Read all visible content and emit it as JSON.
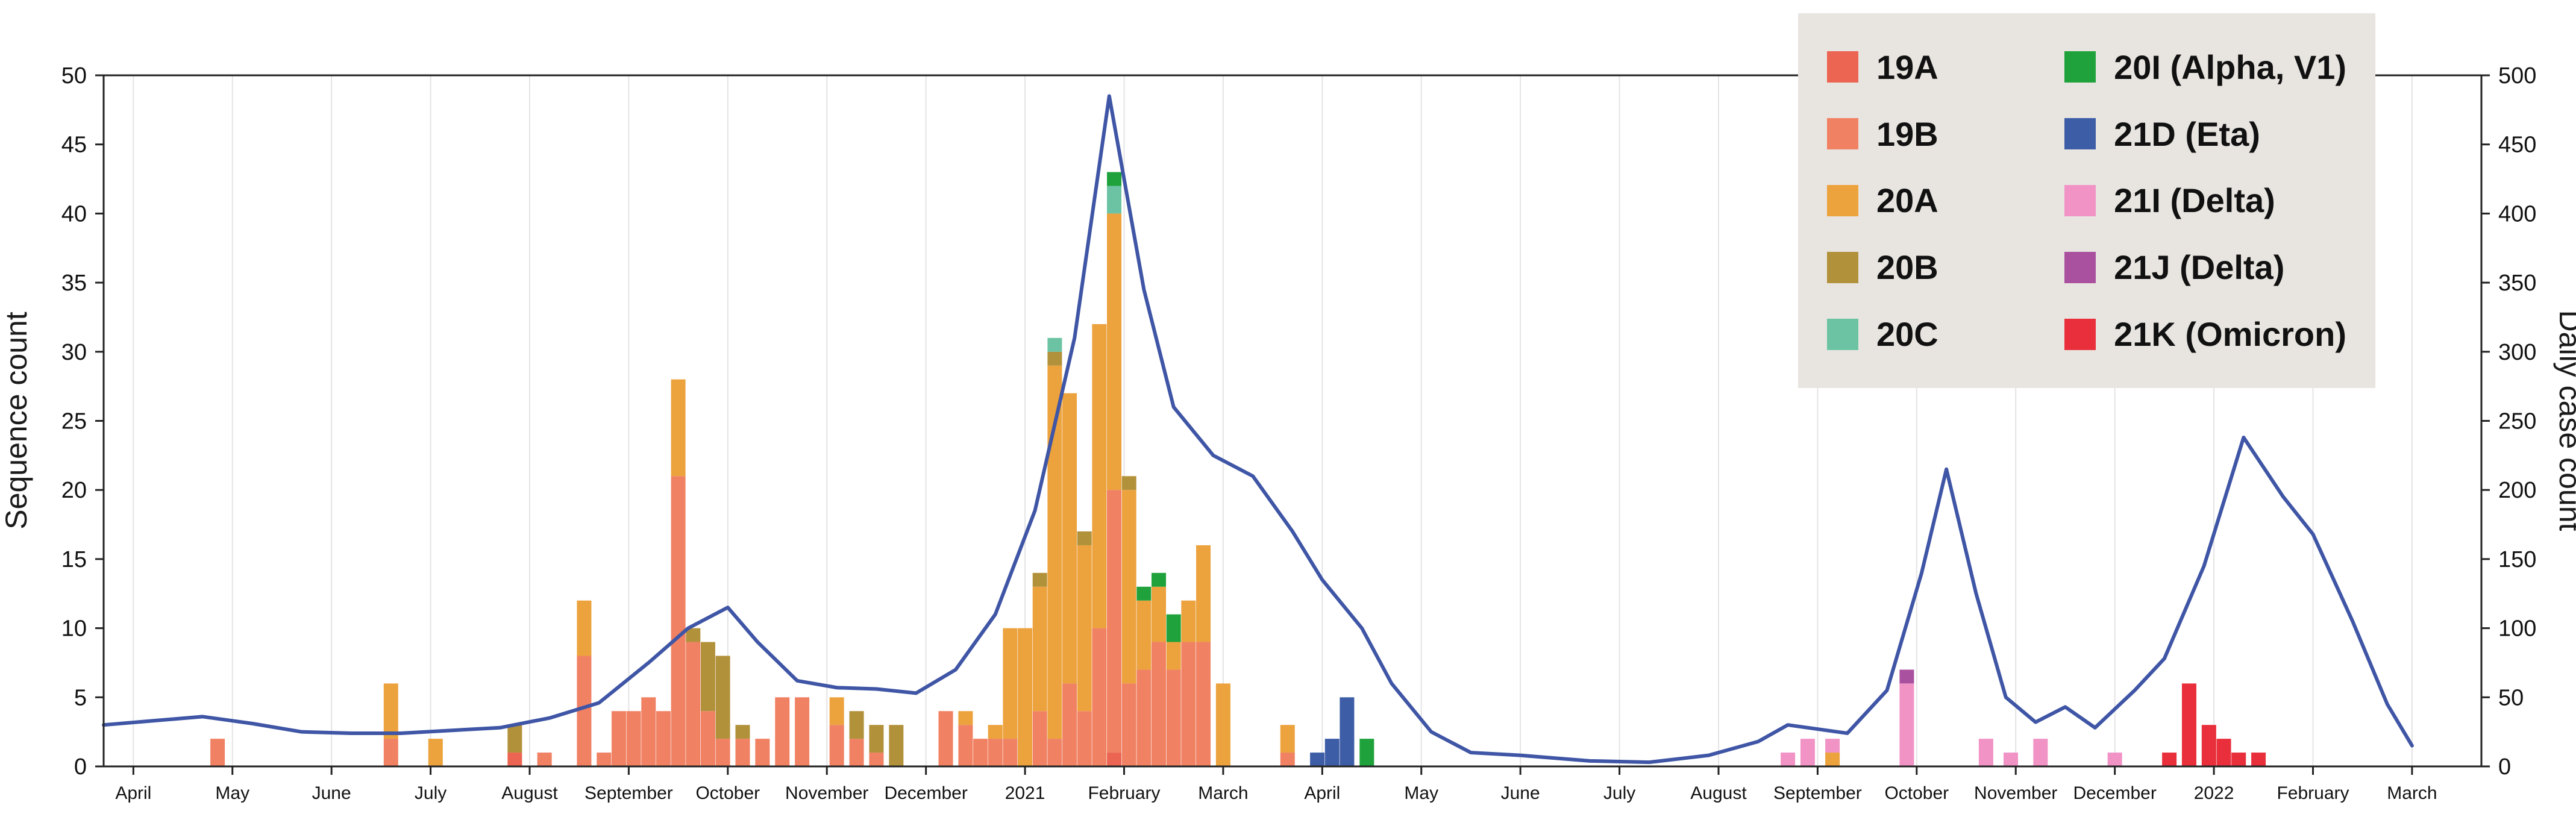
{
  "chart_data": {
    "type": "bar",
    "subtype": "stacked-bar-with-line-overlay",
    "title": "",
    "left_axis": {
      "label": "Sequence count",
      "min": 0,
      "max": 50,
      "tick_step": 5
    },
    "right_axis": {
      "label": "Daily case count",
      "min": 0,
      "max": 500,
      "tick_step": 50
    },
    "x_axis": {
      "months": [
        "April",
        "May",
        "June",
        "July",
        "August",
        "September",
        "October",
        "November",
        "December",
        "2021",
        "February",
        "March",
        "April",
        "May",
        "June",
        "July",
        "August",
        "September",
        "October",
        "November",
        "December",
        "2022",
        "February",
        "March"
      ]
    },
    "grid": "vertical-light",
    "legend_position": "top-right",
    "clades": [
      {
        "id": "19A",
        "label": "19A",
        "color": "#ec6452"
      },
      {
        "id": "19B",
        "label": "19B",
        "color": "#f08163"
      },
      {
        "id": "20A",
        "label": "20A",
        "color": "#eca23d"
      },
      {
        "id": "20B",
        "label": "20B",
        "color": "#b2913b"
      },
      {
        "id": "20C",
        "label": "20C",
        "color": "#6bc3a4"
      },
      {
        "id": "20I",
        "label": "20I (Alpha, V1)",
        "color": "#1fa23b"
      },
      {
        "id": "21D",
        "label": "21D (Eta)",
        "color": "#3d5da7"
      },
      {
        "id": "21I",
        "label": "21I (Delta)",
        "color": "#f293c6"
      },
      {
        "id": "21J",
        "label": "21J (Delta)",
        "color": "#a9509f"
      },
      {
        "id": "21K",
        "label": "21K (Omicron)",
        "color": "#e92f3b"
      }
    ],
    "bars_note": "x is in months from April 2020 (0) to March 2022 (23); segments are sequence counts per Nextstrain clade",
    "bars": [
      {
        "x": 1.15,
        "segments": {
          "19B": 2
        }
      },
      {
        "x": 2.9,
        "segments": {
          "19B": 2,
          "20A": 4
        }
      },
      {
        "x": 3.35,
        "segments": {
          "20A": 2
        }
      },
      {
        "x": 4.15,
        "segments": {
          "19A": 1,
          "20B": 2
        }
      },
      {
        "x": 4.45,
        "segments": {
          "19B": 1
        }
      },
      {
        "x": 4.85,
        "segments": {
          "19B": 8,
          "20A": 4
        }
      },
      {
        "x": 5.05,
        "segments": {
          "19B": 1
        }
      },
      {
        "x": 5.2,
        "segments": {
          "19B": 4
        }
      },
      {
        "x": 5.35,
        "segments": {
          "19B": 4
        }
      },
      {
        "x": 5.5,
        "segments": {
          "19B": 5
        }
      },
      {
        "x": 5.65,
        "segments": {
          "19B": 4
        }
      },
      {
        "x": 5.8,
        "segments": {
          "19B": 21,
          "20A": 7
        }
      },
      {
        "x": 5.95,
        "segments": {
          "19B": 9,
          "20B": 1
        }
      },
      {
        "x": 6.1,
        "segments": {
          "19B": 4,
          "20B": 5
        }
      },
      {
        "x": 6.25,
        "segments": {
          "19B": 2,
          "20B": 6
        }
      },
      {
        "x": 6.45,
        "segments": {
          "19B": 2,
          "20B": 1
        }
      },
      {
        "x": 6.65,
        "segments": {
          "19B": 2
        }
      },
      {
        "x": 6.85,
        "segments": {
          "19B": 5
        }
      },
      {
        "x": 7.05,
        "segments": {
          "19B": 5
        }
      },
      {
        "x": 7.4,
        "segments": {
          "19B": 3,
          "20A": 2
        }
      },
      {
        "x": 7.6,
        "segments": {
          "19B": 2,
          "20B": 2
        }
      },
      {
        "x": 7.8,
        "segments": {
          "19B": 1,
          "20B": 2
        }
      },
      {
        "x": 8.0,
        "segments": {
          "20B": 3
        }
      },
      {
        "x": 8.5,
        "segments": {
          "19B": 4
        }
      },
      {
        "x": 8.7,
        "segments": {
          "19B": 3,
          "20A": 1
        }
      },
      {
        "x": 8.85,
        "segments": {
          "19B": 2
        }
      },
      {
        "x": 9.0,
        "segments": {
          "19B": 2,
          "20A": 1
        }
      },
      {
        "x": 9.15,
        "segments": {
          "19B": 2,
          "20A": 8
        }
      },
      {
        "x": 9.3,
        "segments": {
          "20A": 10
        }
      },
      {
        "x": 9.45,
        "segments": {
          "19B": 4,
          "20A": 9,
          "20B": 1
        }
      },
      {
        "x": 9.6,
        "segments": {
          "19B": 2,
          "20A": 27,
          "20B": 1,
          "20C": 1
        }
      },
      {
        "x": 9.75,
        "segments": {
          "19B": 6,
          "20A": 21
        }
      },
      {
        "x": 9.9,
        "segments": {
          "19B": 4,
          "20A": 12,
          "20B": 1
        }
      },
      {
        "x": 10.05,
        "segments": {
          "19B": 10,
          "20A": 22
        }
      },
      {
        "x": 10.2,
        "segments": {
          "19A": 1,
          "19B": 19,
          "20A": 20,
          "20I": 1,
          "20C": 2
        }
      },
      {
        "x": 10.35,
        "segments": {
          "19B": 6,
          "20A": 14,
          "20B": 1
        }
      },
      {
        "x": 10.5,
        "segments": {
          "19B": 7,
          "20A": 5,
          "20I": 1
        }
      },
      {
        "x": 10.65,
        "segments": {
          "19B": 9,
          "20A": 4,
          "20I": 1
        }
      },
      {
        "x": 10.8,
        "segments": {
          "19B": 7,
          "20A": 2,
          "20I": 2
        }
      },
      {
        "x": 10.95,
        "segments": {
          "19B": 9,
          "20A": 3
        }
      },
      {
        "x": 11.1,
        "segments": {
          "19B": 9,
          "20A": 7
        }
      },
      {
        "x": 11.3,
        "segments": {
          "20A": 6
        }
      },
      {
        "x": 11.95,
        "segments": {
          "19B": 1,
          "20A": 2
        }
      },
      {
        "x": 12.25,
        "segments": {
          "21D": 1
        }
      },
      {
        "x": 12.4,
        "segments": {
          "21D": 2
        }
      },
      {
        "x": 12.55,
        "segments": {
          "21D": 5
        }
      },
      {
        "x": 12.75,
        "segments": {
          "20I": 2
        }
      },
      {
        "x": 17.0,
        "segments": {
          "21I": 1
        }
      },
      {
        "x": 17.2,
        "segments": {
          "21I": 2
        }
      },
      {
        "x": 17.45,
        "segments": {
          "20A": 1,
          "21I": 1
        }
      },
      {
        "x": 18.2,
        "segments": {
          "21I": 6,
          "21J": 1
        }
      },
      {
        "x": 19.0,
        "segments": {
          "21I": 2
        }
      },
      {
        "x": 19.25,
        "segments": {
          "21I": 1
        }
      },
      {
        "x": 19.55,
        "segments": {
          "21I": 2
        }
      },
      {
        "x": 20.3,
        "segments": {
          "21I": 1
        }
      },
      {
        "x": 20.85,
        "segments": {
          "21K": 1
        }
      },
      {
        "x": 21.05,
        "segments": {
          "21K": 6
        }
      },
      {
        "x": 21.25,
        "segments": {
          "21K": 3
        }
      },
      {
        "x": 21.4,
        "segments": {
          "21K": 2
        }
      },
      {
        "x": 21.55,
        "segments": {
          "21K": 1
        }
      },
      {
        "x": 21.75,
        "segments": {
          "21K": 1
        }
      }
    ],
    "line": {
      "name": "Daily case count",
      "color": "#3f55a5",
      "points": [
        [
          0,
          30
        ],
        [
          0.5,
          33
        ],
        [
          1,
          36
        ],
        [
          1.5,
          31
        ],
        [
          2,
          25
        ],
        [
          2.5,
          24
        ],
        [
          3,
          24
        ],
        [
          3.5,
          26
        ],
        [
          4,
          28
        ],
        [
          4.5,
          35
        ],
        [
          5,
          46
        ],
        [
          5.5,
          75
        ],
        [
          5.9,
          100
        ],
        [
          6.3,
          115
        ],
        [
          6.6,
          90
        ],
        [
          7,
          62
        ],
        [
          7.4,
          57
        ],
        [
          7.8,
          56
        ],
        [
          8.2,
          53
        ],
        [
          8.6,
          70
        ],
        [
          9,
          110
        ],
        [
          9.4,
          185
        ],
        [
          9.8,
          310
        ],
        [
          10.15,
          485
        ],
        [
          10.5,
          345
        ],
        [
          10.8,
          260
        ],
        [
          11.2,
          225
        ],
        [
          11.6,
          210
        ],
        [
          12,
          170
        ],
        [
          12.3,
          135
        ],
        [
          12.7,
          100
        ],
        [
          13,
          60
        ],
        [
          13.4,
          25
        ],
        [
          13.8,
          10
        ],
        [
          14.3,
          8
        ],
        [
          15,
          4
        ],
        [
          15.6,
          3
        ],
        [
          16.2,
          8
        ],
        [
          16.7,
          18
        ],
        [
          17,
          30
        ],
        [
          17.3,
          27
        ],
        [
          17.6,
          24
        ],
        [
          18,
          55
        ],
        [
          18.35,
          140
        ],
        [
          18.6,
          215
        ],
        [
          18.9,
          125
        ],
        [
          19.2,
          50
        ],
        [
          19.5,
          32
        ],
        [
          19.8,
          43
        ],
        [
          20.1,
          28
        ],
        [
          20.5,
          55
        ],
        [
          20.8,
          78
        ],
        [
          21.2,
          145
        ],
        [
          21.6,
          238
        ],
        [
          22,
          195
        ],
        [
          22.3,
          168
        ],
        [
          22.7,
          105
        ],
        [
          23.05,
          45
        ],
        [
          23.3,
          15
        ]
      ]
    }
  }
}
